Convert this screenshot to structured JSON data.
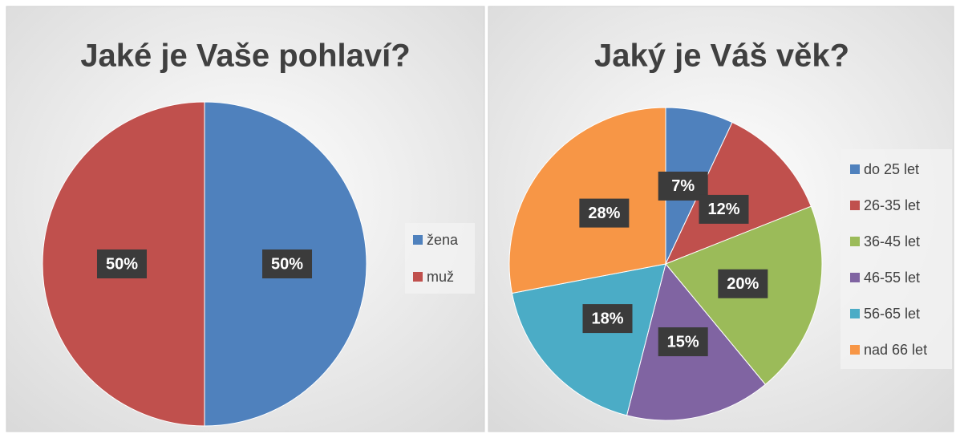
{
  "chart_data": [
    {
      "type": "pie",
      "title": "Jaké je Vaše pohlaví?",
      "categories": [
        "žena",
        "muž"
      ],
      "values": [
        50,
        50
      ],
      "value_labels": [
        "50%",
        "50%"
      ],
      "colors": [
        "#4f81bd",
        "#c0504d"
      ],
      "legend": "right"
    },
    {
      "type": "pie",
      "title": "Jaký je Váš věk?",
      "categories": [
        "do 25 let",
        "26-35 let",
        "36-45 let",
        "46-55 let",
        "56-65 let",
        "nad 66 let"
      ],
      "values": [
        7,
        12,
        20,
        15,
        18,
        28
      ],
      "value_labels": [
        "7%",
        "12%",
        "20%",
        "15%",
        "18%",
        "28%"
      ],
      "colors": [
        "#4f81bd",
        "#c0504d",
        "#9bbb59",
        "#8064a2",
        "#4bacc6",
        "#f79646"
      ],
      "legend": "right"
    }
  ]
}
